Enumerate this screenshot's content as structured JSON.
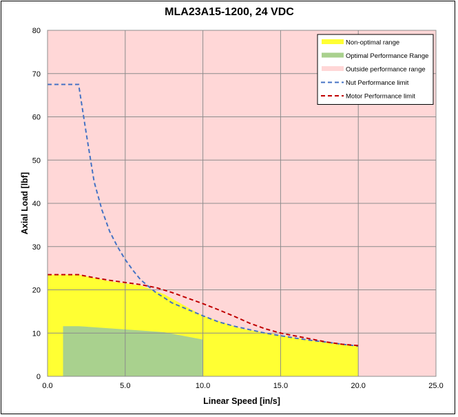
{
  "chart_data": {
    "type": "area",
    "title": "MLA23A15-1200, 24 VDC",
    "xlabel": "Linear Speed [in/s]",
    "ylabel": "Axial Load [lbf]",
    "xlim": [
      0,
      25
    ],
    "ylim": [
      0,
      80
    ],
    "x_ticks": [
      0,
      5,
      10,
      15,
      20,
      25
    ],
    "x_tick_labels": [
      "0.0",
      "5.0",
      "10.0",
      "15.0",
      "20.0",
      "25.0"
    ],
    "y_ticks": [
      0,
      10,
      20,
      30,
      40,
      50,
      60,
      70,
      80
    ],
    "y_tick_labels": [
      "0",
      "10",
      "20",
      "30",
      "40",
      "50",
      "60",
      "70",
      "80"
    ],
    "grid": true,
    "legend_position": "top-right",
    "background_color": "#ffd7d7",
    "series": [
      {
        "name": "Non-optimal range",
        "kind": "area",
        "color": "#ffff33",
        "x": [
          0,
          2,
          4,
          6,
          7.5,
          10,
          12.5,
          15,
          17.5,
          20,
          20
        ],
        "y": [
          23.5,
          23.5,
          22,
          21,
          19,
          14,
          11,
          9.5,
          8,
          7,
          0
        ]
      },
      {
        "name": "Optimal Performance Range",
        "kind": "area",
        "color": "#a9d18e",
        "x": [
          1,
          1,
          2,
          4,
          6,
          7.5,
          10,
          10
        ],
        "y": [
          0,
          11.6,
          11.6,
          11.1,
          10.6,
          10.2,
          8.5,
          0
        ]
      },
      {
        "name": "Outside performance range",
        "kind": "area",
        "color": "#ffd7d7"
      },
      {
        "name": "Nut Performance limit",
        "kind": "line",
        "dash": "dashed",
        "color": "#4472c4",
        "x": [
          0,
          2,
          2.5,
          3,
          3.5,
          4,
          4.5,
          5,
          5.5,
          6,
          6.5,
          7,
          7.5,
          8,
          9,
          10,
          11,
          12,
          13,
          14,
          15,
          16,
          17,
          18,
          19,
          20
        ],
        "y": [
          67.5,
          67.5,
          56,
          45,
          38.5,
          33.5,
          30,
          27,
          24.5,
          22.3,
          20.8,
          19.3,
          18.2,
          17,
          15.5,
          14,
          12.6,
          11.6,
          10.8,
          10,
          9.4,
          8.8,
          8.3,
          7.9,
          7.4,
          7
        ]
      },
      {
        "name": "Motor Performance limit",
        "kind": "line",
        "dash": "dashed",
        "color": "#c00000",
        "x": [
          0,
          2,
          3,
          4,
          5,
          6,
          7,
          8,
          9,
          10,
          11,
          12,
          13,
          14,
          15,
          16,
          17,
          18,
          19,
          20
        ],
        "y": [
          23.5,
          23.5,
          22.8,
          22.2,
          21.7,
          21.2,
          20.5,
          19.4,
          18.1,
          16.8,
          15.4,
          13.9,
          12.3,
          11,
          10,
          9.3,
          8.6,
          7.9,
          7.4,
          7.1
        ]
      }
    ]
  }
}
